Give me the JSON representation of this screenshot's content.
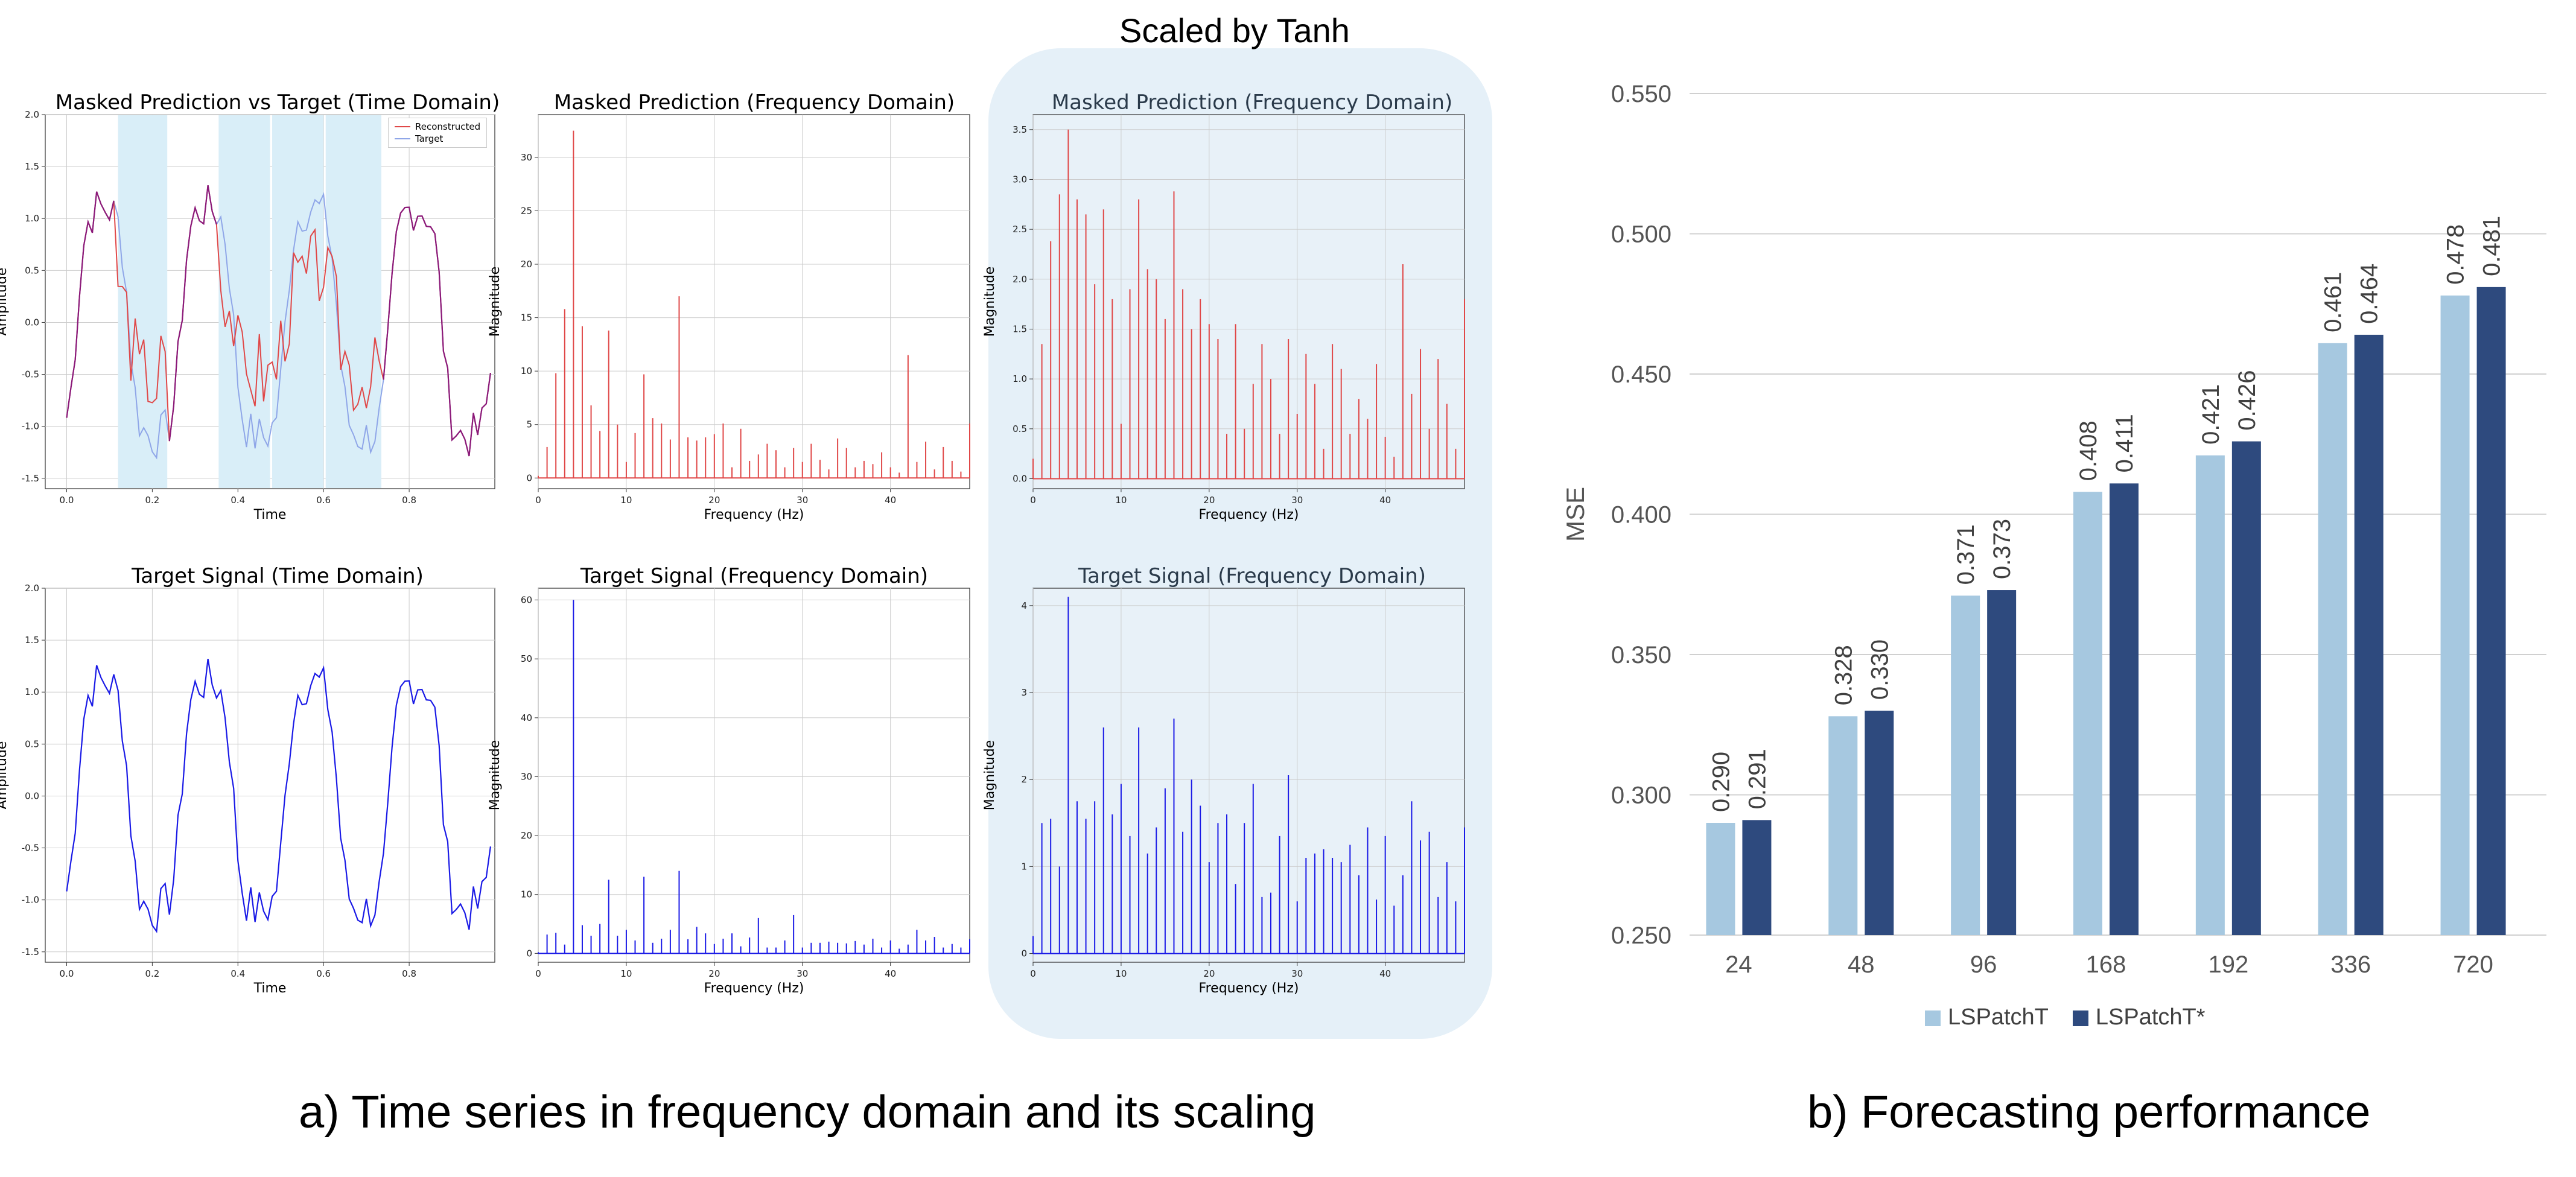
{
  "section_a": {
    "scaled_title": "Scaled by Tanh",
    "caption": "a) Time series in frequency domain and its scaling"
  },
  "section_b": {
    "caption": "b) Forecasting performance"
  },
  "colors": {
    "red": "#e04848",
    "blue": "#1a1ae6",
    "purple": "#8b1a7a",
    "lightblue_series": "#8fa6e8",
    "mask": "#d9eef8",
    "shade": "#e5f0f8",
    "bar_light": "#a6c8e0",
    "bar_dark": "#2e4a7e"
  },
  "chart_data": [
    {
      "id": "p1",
      "type": "line",
      "title": "Masked Prediction vs Target (Time Domain)",
      "xlabel": "Time",
      "ylabel": "Amplitude",
      "xlim": [
        -0.05,
        1.0
      ],
      "ylim": [
        -1.6,
        2.0
      ],
      "xticks": [
        "0.0",
        "0.2",
        "0.4",
        "0.6",
        "0.8"
      ],
      "xtick_values": [
        0.0,
        0.2,
        0.4,
        0.6,
        0.8
      ],
      "yticks": [
        "-1.5",
        "-1.0",
        "-0.5",
        "0.0",
        "0.5",
        "1.0",
        "1.5",
        "2.0"
      ],
      "ytick_values": [
        -1.5,
        -1.0,
        -0.5,
        0.0,
        0.5,
        1.0,
        1.5,
        2.0
      ],
      "legend": [
        "Reconstructed",
        "Target"
      ],
      "masked_spans": [
        [
          0.12,
          0.235
        ],
        [
          0.355,
          0.475
        ],
        [
          0.48,
          0.6
        ],
        [
          0.605,
          0.735
        ]
      ],
      "series": [
        {
          "name": "Reconstructed",
          "color": "#e04848"
        },
        {
          "name": "Target",
          "color": "#8fa6e8"
        }
      ]
    },
    {
      "id": "p2",
      "type": "stem",
      "title": "Masked Prediction (Frequency Domain)",
      "xlabel": "Frequency (Hz)",
      "ylabel": "Magnitude",
      "xlim": [
        0,
        49
      ],
      "ylim": [
        -1,
        34
      ],
      "xticks": [
        "0",
        "10",
        "20",
        "30",
        "40"
      ],
      "xtick_values": [
        0,
        10,
        20,
        30,
        40
      ],
      "yticks": [
        "0",
        "5",
        "10",
        "15",
        "20",
        "25",
        "30"
      ],
      "ytick_values": [
        0,
        5,
        10,
        15,
        20,
        25,
        30
      ],
      "color": "#e04848",
      "values": [
        0.2,
        2.9,
        9.8,
        15.8,
        32.5,
        14.2,
        6.8,
        4.4,
        13.8,
        5.0,
        1.5,
        4.2,
        9.7,
        5.6,
        5.1,
        3.6,
        17.0,
        3.8,
        3.5,
        3.8,
        4.1,
        5.1,
        1.0,
        4.6,
        1.6,
        2.2,
        3.2,
        2.6,
        1.0,
        2.8,
        1.5,
        3.2,
        1.7,
        0.8,
        3.7,
        2.8,
        1.0,
        1.6,
        1.3,
        2.4,
        1.0,
        0.5,
        11.5,
        1.5,
        3.4,
        0.8,
        2.9,
        1.6,
        0.6,
        5.1
      ]
    },
    {
      "id": "p3",
      "type": "stem",
      "title": "Masked Prediction (Frequency Domain)",
      "xlabel": "Frequency (Hz)",
      "ylabel": "Magnitude",
      "xlim": [
        0,
        49
      ],
      "ylim": [
        -0.1,
        3.65
      ],
      "xticks": [
        "0",
        "10",
        "20",
        "30",
        "40"
      ],
      "xtick_values": [
        0,
        10,
        20,
        30,
        40
      ],
      "yticks": [
        "0.0",
        "0.5",
        "1.0",
        "1.5",
        "2.0",
        "2.5",
        "3.0",
        "3.5"
      ],
      "ytick_values": [
        0.0,
        0.5,
        1.0,
        1.5,
        2.0,
        2.5,
        3.0,
        3.5
      ],
      "color": "#e04848",
      "values": [
        0.2,
        1.35,
        2.38,
        2.85,
        3.5,
        2.8,
        2.65,
        1.95,
        2.7,
        1.8,
        0.55,
        1.9,
        2.8,
        2.1,
        2.0,
        1.6,
        2.88,
        1.9,
        1.5,
        1.8,
        1.55,
        1.4,
        0.45,
        1.55,
        0.5,
        0.95,
        1.35,
        1.0,
        0.45,
        1.4,
        0.65,
        1.25,
        0.95,
        0.3,
        1.35,
        1.1,
        0.45,
        0.8,
        0.6,
        1.15,
        0.42,
        0.22,
        2.15,
        0.85,
        1.3,
        0.5,
        1.2,
        0.75,
        0.3,
        1.8
      ]
    },
    {
      "id": "p4",
      "type": "line",
      "title": "Target Signal (Time Domain)",
      "xlabel": "Time",
      "ylabel": "Amplitude",
      "xlim": [
        -0.05,
        1.0
      ],
      "ylim": [
        -1.6,
        2.0
      ],
      "xticks": [
        "0.0",
        "0.2",
        "0.4",
        "0.6",
        "0.8"
      ],
      "xtick_values": [
        0.0,
        0.2,
        0.4,
        0.6,
        0.8
      ],
      "yticks": [
        "-1.5",
        "-1.0",
        "-0.5",
        "0.0",
        "0.5",
        "1.0",
        "1.5",
        "2.0"
      ],
      "ytick_values": [
        -1.5,
        -1.0,
        -0.5,
        0.0,
        0.5,
        1.0,
        1.5,
        2.0
      ],
      "series": [
        {
          "name": "Target",
          "color": "#1a1ae6"
        }
      ]
    },
    {
      "id": "p5",
      "type": "stem",
      "title": "Target Signal (Frequency Domain)",
      "xlabel": "Frequency (Hz)",
      "ylabel": "Magnitude",
      "xlim": [
        0,
        49
      ],
      "ylim": [
        -1.5,
        62
      ],
      "xticks": [
        "0",
        "10",
        "20",
        "30",
        "40"
      ],
      "xtick_values": [
        0,
        10,
        20,
        30,
        40
      ],
      "yticks": [
        "0",
        "10",
        "20",
        "30",
        "40",
        "50",
        "60"
      ],
      "ytick_values": [
        0,
        10,
        20,
        30,
        40,
        50,
        60
      ],
      "color": "#1a1ae6",
      "values": [
        0.2,
        3.2,
        3.5,
        1.5,
        60,
        4.8,
        3.0,
        5.0,
        12.5,
        3.0,
        4.0,
        2.2,
        13.0,
        1.8,
        2.5,
        4.0,
        14.0,
        2.4,
        4.5,
        3.4,
        1.6,
        2.5,
        3.4,
        1.2,
        2.7,
        6.0,
        1.0,
        1.0,
        2.2,
        6.5,
        1.0,
        1.8,
        1.8,
        2.0,
        1.8,
        1.7,
        2.1,
        1.5,
        2.5,
        1.0,
        2.2,
        0.8,
        1.5,
        4.0,
        2.2,
        2.8,
        1.0,
        1.6,
        1.0,
        2.4
      ]
    },
    {
      "id": "p6",
      "type": "stem",
      "title": "Target Signal (Frequency Domain)",
      "xlabel": "Frequency (Hz)",
      "ylabel": "Magnitude",
      "xlim": [
        0,
        49
      ],
      "ylim": [
        -0.1,
        4.2
      ],
      "xticks": [
        "0",
        "10",
        "20",
        "30",
        "40"
      ],
      "xtick_values": [
        0,
        10,
        20,
        30,
        40
      ],
      "yticks": [
        "0",
        "1",
        "2",
        "3",
        "4"
      ],
      "ytick_values": [
        0,
        1,
        2,
        3,
        4
      ],
      "color": "#1a1ae6",
      "values": [
        0.2,
        1.5,
        1.55,
        1.0,
        4.1,
        1.75,
        1.55,
        1.75,
        2.6,
        1.6,
        1.95,
        1.35,
        2.6,
        1.15,
        1.45,
        1.9,
        2.7,
        1.4,
        2.0,
        1.7,
        1.05,
        1.5,
        1.6,
        0.8,
        1.5,
        1.95,
        0.65,
        0.7,
        1.35,
        2.05,
        0.6,
        1.1,
        1.15,
        1.2,
        1.1,
        1.05,
        1.25,
        0.9,
        1.45,
        0.62,
        1.35,
        0.55,
        0.9,
        1.75,
        1.3,
        1.4,
        0.65,
        1.05,
        0.6,
        1.45
      ]
    },
    {
      "id": "bars",
      "type": "bar",
      "title": "",
      "xlabel": "",
      "ylabel": "MSE",
      "categories": [
        "24",
        "48",
        "96",
        "168",
        "192",
        "336",
        "720"
      ],
      "ylim": [
        0.25,
        0.55
      ],
      "yticks": [
        "0.250",
        "0.300",
        "0.350",
        "0.400",
        "0.450",
        "0.500",
        "0.550"
      ],
      "ytick_values": [
        0.25,
        0.3,
        0.35,
        0.4,
        0.45,
        0.5,
        0.55
      ],
      "series": [
        {
          "name": "LSPatchT",
          "color": "#a6c8e0",
          "values": [
            0.29,
            0.328,
            0.371,
            0.408,
            0.421,
            0.461,
            0.478
          ],
          "labels": [
            "0.290",
            "0.328",
            "0.371",
            "0.408",
            "0.421",
            "0.461",
            "0.478"
          ]
        },
        {
          "name": "LSPatchT*",
          "color": "#2e4a7e",
          "values": [
            0.291,
            0.33,
            0.373,
            0.411,
            0.426,
            0.464,
            0.481
          ],
          "labels": [
            "0.291",
            "0.330",
            "0.373",
            "0.411",
            "0.426",
            "0.464",
            "0.481"
          ]
        }
      ],
      "legend_position": "bottom"
    }
  ]
}
